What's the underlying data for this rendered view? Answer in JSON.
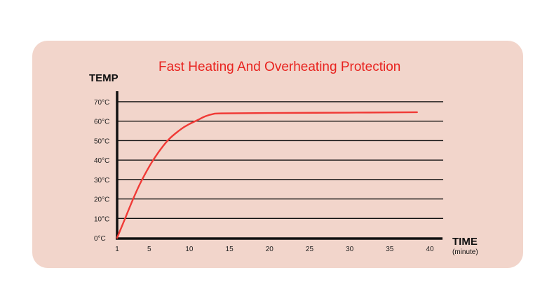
{
  "chart_data": {
    "type": "line",
    "title": "Fast Heating And Overheating Protection",
    "ylabel": "TEMP",
    "xlabel": "TIME",
    "xlabel_unit": "(minute)",
    "xlim": [
      1,
      40
    ],
    "ylim": [
      0,
      70
    ],
    "x_ticks": [
      1,
      5,
      10,
      15,
      20,
      25,
      30,
      35,
      40
    ],
    "x_tick_labels": [
      "1",
      "5",
      "10",
      "15",
      "20",
      "25",
      "30",
      "35",
      "40"
    ],
    "y_ticks": [
      0,
      10,
      20,
      30,
      40,
      50,
      60,
      70
    ],
    "y_tick_labels": [
      "0°C",
      "10°C",
      "20°C",
      "30°C",
      "40°C",
      "50°C",
      "60°C",
      "70°C"
    ],
    "grid": true,
    "series": [
      {
        "name": "temperature",
        "color": "#f03a36",
        "x": [
          1,
          1.5,
          2,
          3,
          4,
          5.5,
          7.3,
          9,
          10,
          11,
          12,
          13,
          14,
          20,
          30,
          38.4
        ],
        "y": [
          0,
          5,
          10,
          20,
          29,
          40,
          50,
          56,
          58.5,
          60.5,
          62.5,
          63.7,
          64,
          64.2,
          64.4,
          64.6
        ]
      }
    ]
  }
}
